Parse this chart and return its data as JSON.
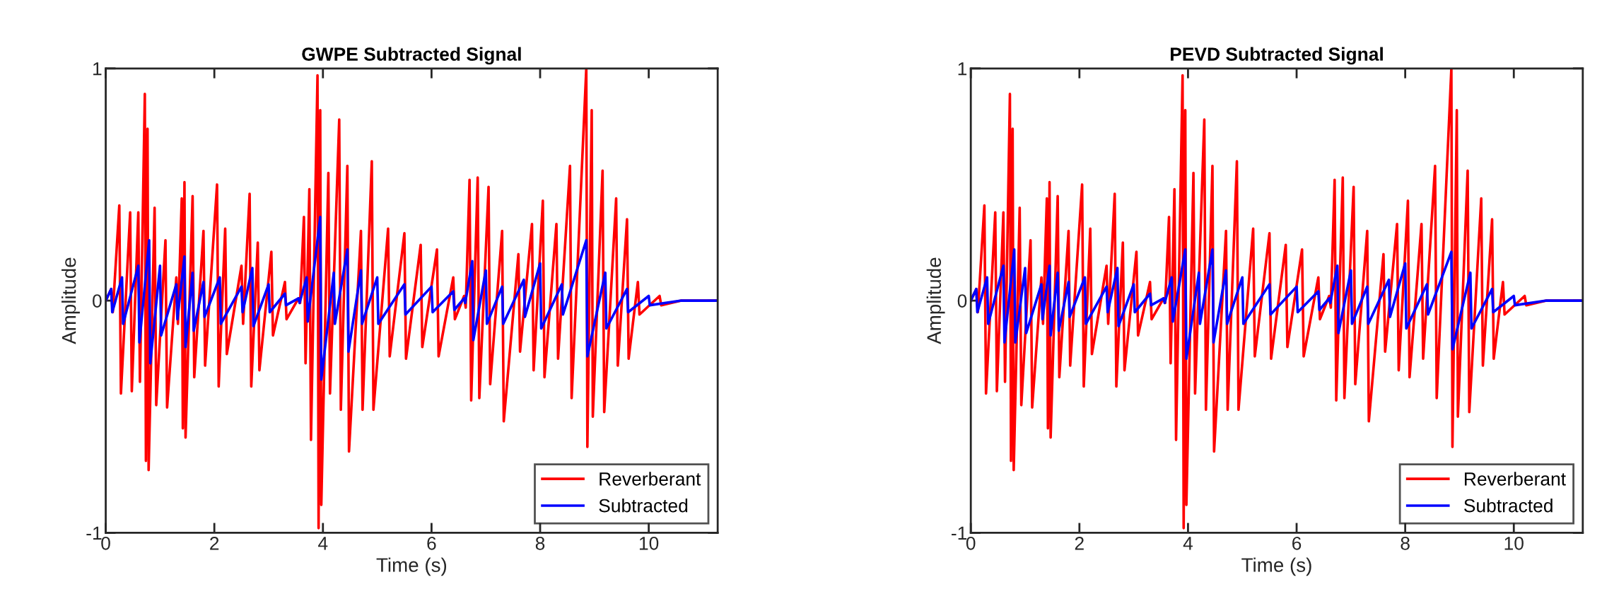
{
  "chart_data": [
    {
      "type": "line",
      "title": "GWPE Subtracted Signal",
      "xlabel": "Time (s)",
      "ylabel": "Amplitude",
      "xlim": [
        0,
        11.27
      ],
      "ylim": [
        -1,
        1
      ],
      "xticks": [
        0,
        2,
        4,
        6,
        8,
        10
      ],
      "yticks": [
        -1,
        0,
        1
      ],
      "grid": false,
      "legend": "bottom right",
      "line_style": "solid",
      "marker": "none",
      "series": [
        {
          "name": "Reverberant",
          "color": "#ff0000",
          "x": [
            0,
            0.1,
            0.13,
            0.25,
            0.28,
            0.45,
            0.48,
            0.6,
            0.63,
            0.72,
            0.74,
            0.77,
            0.79,
            0.9,
            0.93,
            1.1,
            1.13,
            1.3,
            1.33,
            1.4,
            1.42,
            1.45,
            1.47,
            1.6,
            1.63,
            1.8,
            1.83,
            2.05,
            2.08,
            2.2,
            2.23,
            2.5,
            2.53,
            2.65,
            2.68,
            2.8,
            2.83,
            3.05,
            3.08,
            3.3,
            3.33,
            3.55,
            3.58,
            3.65,
            3.68,
            3.75,
            3.78,
            3.9,
            3.92,
            3.95,
            3.97,
            4.1,
            4.13,
            4.3,
            4.33,
            4.45,
            4.48,
            4.7,
            4.73,
            4.9,
            4.93,
            5.2,
            5.23,
            5.5,
            5.53,
            5.8,
            5.83,
            6.1,
            6.13,
            6.4,
            6.43,
            6.6,
            6.63,
            6.7,
            6.73,
            6.85,
            6.88,
            7.05,
            7.08,
            7.3,
            7.33,
            7.6,
            7.63,
            7.85,
            7.88,
            8.05,
            8.08,
            8.3,
            8.33,
            8.55,
            8.58,
            8.85,
            8.87,
            8.95,
            8.97,
            9.15,
            9.18,
            9.4,
            9.43,
            9.6,
            9.63,
            9.8,
            9.83,
            10.2,
            10.23,
            10.6,
            11.27
          ],
          "values": [
            0,
            0.05,
            -0.05,
            0.41,
            -0.4,
            0.38,
            -0.39,
            0.38,
            -0.35,
            0.89,
            -0.69,
            0.74,
            -0.73,
            0.4,
            -0.45,
            0.26,
            -0.46,
            0.1,
            -0.1,
            0.44,
            -0.55,
            0.51,
            -0.59,
            0.45,
            -0.33,
            0.3,
            -0.28,
            0.5,
            -0.37,
            0.31,
            -0.23,
            0.15,
            -0.1,
            0.46,
            -0.37,
            0.25,
            -0.3,
            0.21,
            -0.15,
            0.08,
            -0.08,
            0.01,
            -0.01,
            0.36,
            -0.27,
            0.48,
            -0.6,
            0.97,
            -0.98,
            0.82,
            -0.88,
            0.55,
            -0.4,
            0.78,
            -0.47,
            0.58,
            -0.65,
            0.3,
            -0.47,
            0.6,
            -0.47,
            0.31,
            -0.24,
            0.29,
            -0.25,
            0.24,
            -0.2,
            0.22,
            -0.24,
            0.1,
            -0.08,
            0.02,
            -0.03,
            0.52,
            -0.43,
            0.53,
            -0.42,
            0.49,
            -0.36,
            0.3,
            -0.52,
            0.2,
            -0.22,
            0.33,
            -0.3,
            0.43,
            -0.33,
            0.33,
            -0.25,
            0.58,
            -0.42,
            1.0,
            -0.63,
            0.82,
            -0.5,
            0.56,
            -0.48,
            0.44,
            -0.28,
            0.35,
            -0.25,
            0.08,
            -0.06,
            0.02,
            -0.02,
            0,
            0
          ]
        },
        {
          "name": "Subtracted",
          "color": "#0000ff",
          "x": [
            0,
            0.1,
            0.12,
            0.3,
            0.32,
            0.6,
            0.62,
            0.8,
            0.82,
            1.0,
            1.02,
            1.3,
            1.32,
            1.45,
            1.47,
            1.6,
            1.62,
            1.8,
            1.82,
            2.1,
            2.12,
            2.5,
            2.52,
            2.7,
            2.72,
            3.0,
            3.02,
            3.3,
            3.32,
            3.55,
            3.57,
            3.7,
            3.72,
            3.95,
            3.97,
            4.2,
            4.22,
            4.45,
            4.47,
            4.7,
            4.72,
            5.0,
            5.02,
            5.5,
            5.52,
            6.0,
            6.02,
            6.4,
            6.42,
            6.6,
            6.62,
            6.75,
            6.77,
            7.0,
            7.02,
            7.3,
            7.32,
            7.7,
            7.72,
            8.0,
            8.02,
            8.4,
            8.42,
            8.85,
            8.87,
            9.2,
            9.22,
            9.6,
            9.62,
            10.0,
            10.02,
            10.6,
            11.27
          ],
          "values": [
            0,
            0.05,
            -0.05,
            0.1,
            -0.1,
            0.15,
            -0.18,
            0.26,
            -0.27,
            0.15,
            -0.15,
            0.07,
            -0.08,
            0.19,
            -0.2,
            0.12,
            -0.13,
            0.08,
            -0.07,
            0.1,
            -0.1,
            0.06,
            -0.05,
            0.14,
            -0.11,
            0.07,
            -0.05,
            0.03,
            -0.02,
            0.01,
            -0.01,
            0.1,
            -0.09,
            0.36,
            -0.34,
            0.12,
            -0.1,
            0.22,
            -0.22,
            0.13,
            -0.1,
            0.1,
            -0.1,
            0.07,
            -0.06,
            0.06,
            -0.05,
            0.04,
            -0.04,
            0.01,
            -0.01,
            0.17,
            -0.17,
            0.13,
            -0.1,
            0.06,
            -0.1,
            0.09,
            -0.07,
            0.16,
            -0.12,
            0.07,
            -0.06,
            0.26,
            -0.24,
            0.12,
            -0.12,
            0.05,
            -0.05,
            0.02,
            -0.02,
            0,
            0
          ]
        }
      ]
    },
    {
      "type": "line",
      "title": "PEVD Subtracted Signal",
      "xlabel": "Time (s)",
      "ylabel": "Amplitude",
      "xlim": [
        0,
        11.27
      ],
      "ylim": [
        -1,
        1
      ],
      "xticks": [
        0,
        2,
        4,
        6,
        8,
        10
      ],
      "yticks": [
        -1,
        0,
        1
      ],
      "grid": false,
      "legend": "bottom right",
      "line_style": "solid",
      "marker": "none",
      "series": [
        {
          "name": "Reverberant",
          "color": "#ff0000",
          "x": [
            0,
            0.1,
            0.13,
            0.25,
            0.28,
            0.45,
            0.48,
            0.6,
            0.63,
            0.72,
            0.74,
            0.77,
            0.79,
            0.9,
            0.93,
            1.1,
            1.13,
            1.3,
            1.33,
            1.4,
            1.42,
            1.45,
            1.47,
            1.6,
            1.63,
            1.8,
            1.83,
            2.05,
            2.08,
            2.2,
            2.23,
            2.5,
            2.53,
            2.65,
            2.68,
            2.8,
            2.83,
            3.05,
            3.08,
            3.3,
            3.33,
            3.55,
            3.58,
            3.65,
            3.68,
            3.75,
            3.78,
            3.9,
            3.92,
            3.95,
            3.97,
            4.1,
            4.13,
            4.3,
            4.33,
            4.45,
            4.48,
            4.7,
            4.73,
            4.9,
            4.93,
            5.2,
            5.23,
            5.5,
            5.53,
            5.8,
            5.83,
            6.1,
            6.13,
            6.4,
            6.43,
            6.6,
            6.63,
            6.7,
            6.73,
            6.85,
            6.88,
            7.05,
            7.08,
            7.3,
            7.33,
            7.6,
            7.63,
            7.85,
            7.88,
            8.05,
            8.08,
            8.3,
            8.33,
            8.55,
            8.58,
            8.85,
            8.87,
            8.95,
            8.97,
            9.15,
            9.18,
            9.4,
            9.43,
            9.6,
            9.63,
            9.8,
            9.83,
            10.2,
            10.23,
            10.6,
            11.27
          ],
          "values": [
            0,
            0.05,
            -0.05,
            0.41,
            -0.4,
            0.38,
            -0.39,
            0.38,
            -0.35,
            0.89,
            -0.69,
            0.74,
            -0.73,
            0.4,
            -0.45,
            0.26,
            -0.46,
            0.1,
            -0.1,
            0.44,
            -0.55,
            0.51,
            -0.59,
            0.45,
            -0.33,
            0.3,
            -0.28,
            0.5,
            -0.37,
            0.31,
            -0.23,
            0.15,
            -0.1,
            0.46,
            -0.37,
            0.25,
            -0.3,
            0.21,
            -0.15,
            0.08,
            -0.08,
            0.01,
            -0.01,
            0.36,
            -0.27,
            0.48,
            -0.6,
            0.97,
            -0.98,
            0.82,
            -0.88,
            0.55,
            -0.4,
            0.78,
            -0.47,
            0.58,
            -0.65,
            0.3,
            -0.47,
            0.6,
            -0.47,
            0.31,
            -0.24,
            0.29,
            -0.25,
            0.24,
            -0.2,
            0.22,
            -0.24,
            0.1,
            -0.08,
            0.02,
            -0.03,
            0.52,
            -0.43,
            0.53,
            -0.42,
            0.49,
            -0.36,
            0.3,
            -0.52,
            0.2,
            -0.22,
            0.33,
            -0.3,
            0.43,
            -0.33,
            0.33,
            -0.25,
            0.58,
            -0.42,
            1.0,
            -0.63,
            0.82,
            -0.5,
            0.56,
            -0.48,
            0.44,
            -0.28,
            0.35,
            -0.25,
            0.08,
            -0.06,
            0.02,
            -0.02,
            0,
            0
          ]
        },
        {
          "name": "Subtracted",
          "color": "#0000ff",
          "x": [
            0,
            0.1,
            0.12,
            0.3,
            0.32,
            0.6,
            0.62,
            0.8,
            0.82,
            1.0,
            1.02,
            1.3,
            1.32,
            1.45,
            1.47,
            1.6,
            1.62,
            1.8,
            1.82,
            2.1,
            2.12,
            2.5,
            2.52,
            2.7,
            2.72,
            3.0,
            3.02,
            3.3,
            3.32,
            3.55,
            3.57,
            3.7,
            3.72,
            3.95,
            3.97,
            4.2,
            4.22,
            4.45,
            4.47,
            4.7,
            4.72,
            5.0,
            5.02,
            5.5,
            5.52,
            6.0,
            6.02,
            6.4,
            6.42,
            6.6,
            6.62,
            6.75,
            6.77,
            7.0,
            7.02,
            7.3,
            7.32,
            7.7,
            7.72,
            8.0,
            8.02,
            8.4,
            8.42,
            8.85,
            8.87,
            9.2,
            9.22,
            9.6,
            9.62,
            10.0,
            10.02,
            10.6,
            11.27
          ],
          "values": [
            0,
            0.05,
            -0.05,
            0.1,
            -0.1,
            0.15,
            -0.18,
            0.22,
            -0.18,
            0.14,
            -0.14,
            0.07,
            -0.08,
            0.15,
            -0.15,
            0.12,
            -0.13,
            0.08,
            -0.07,
            0.1,
            -0.1,
            0.06,
            -0.05,
            0.14,
            -0.11,
            0.07,
            -0.05,
            0.03,
            -0.02,
            0.01,
            -0.01,
            0.1,
            -0.09,
            0.22,
            -0.25,
            0.12,
            -0.1,
            0.22,
            -0.18,
            0.13,
            -0.1,
            0.1,
            -0.1,
            0.07,
            -0.06,
            0.06,
            -0.05,
            0.04,
            -0.04,
            0.01,
            -0.01,
            0.15,
            -0.14,
            0.13,
            -0.1,
            0.06,
            -0.1,
            0.09,
            -0.07,
            0.16,
            -0.12,
            0.07,
            -0.06,
            0.21,
            -0.21,
            0.12,
            -0.12,
            0.05,
            -0.05,
            0.02,
            -0.02,
            0,
            0
          ]
        }
      ]
    }
  ]
}
